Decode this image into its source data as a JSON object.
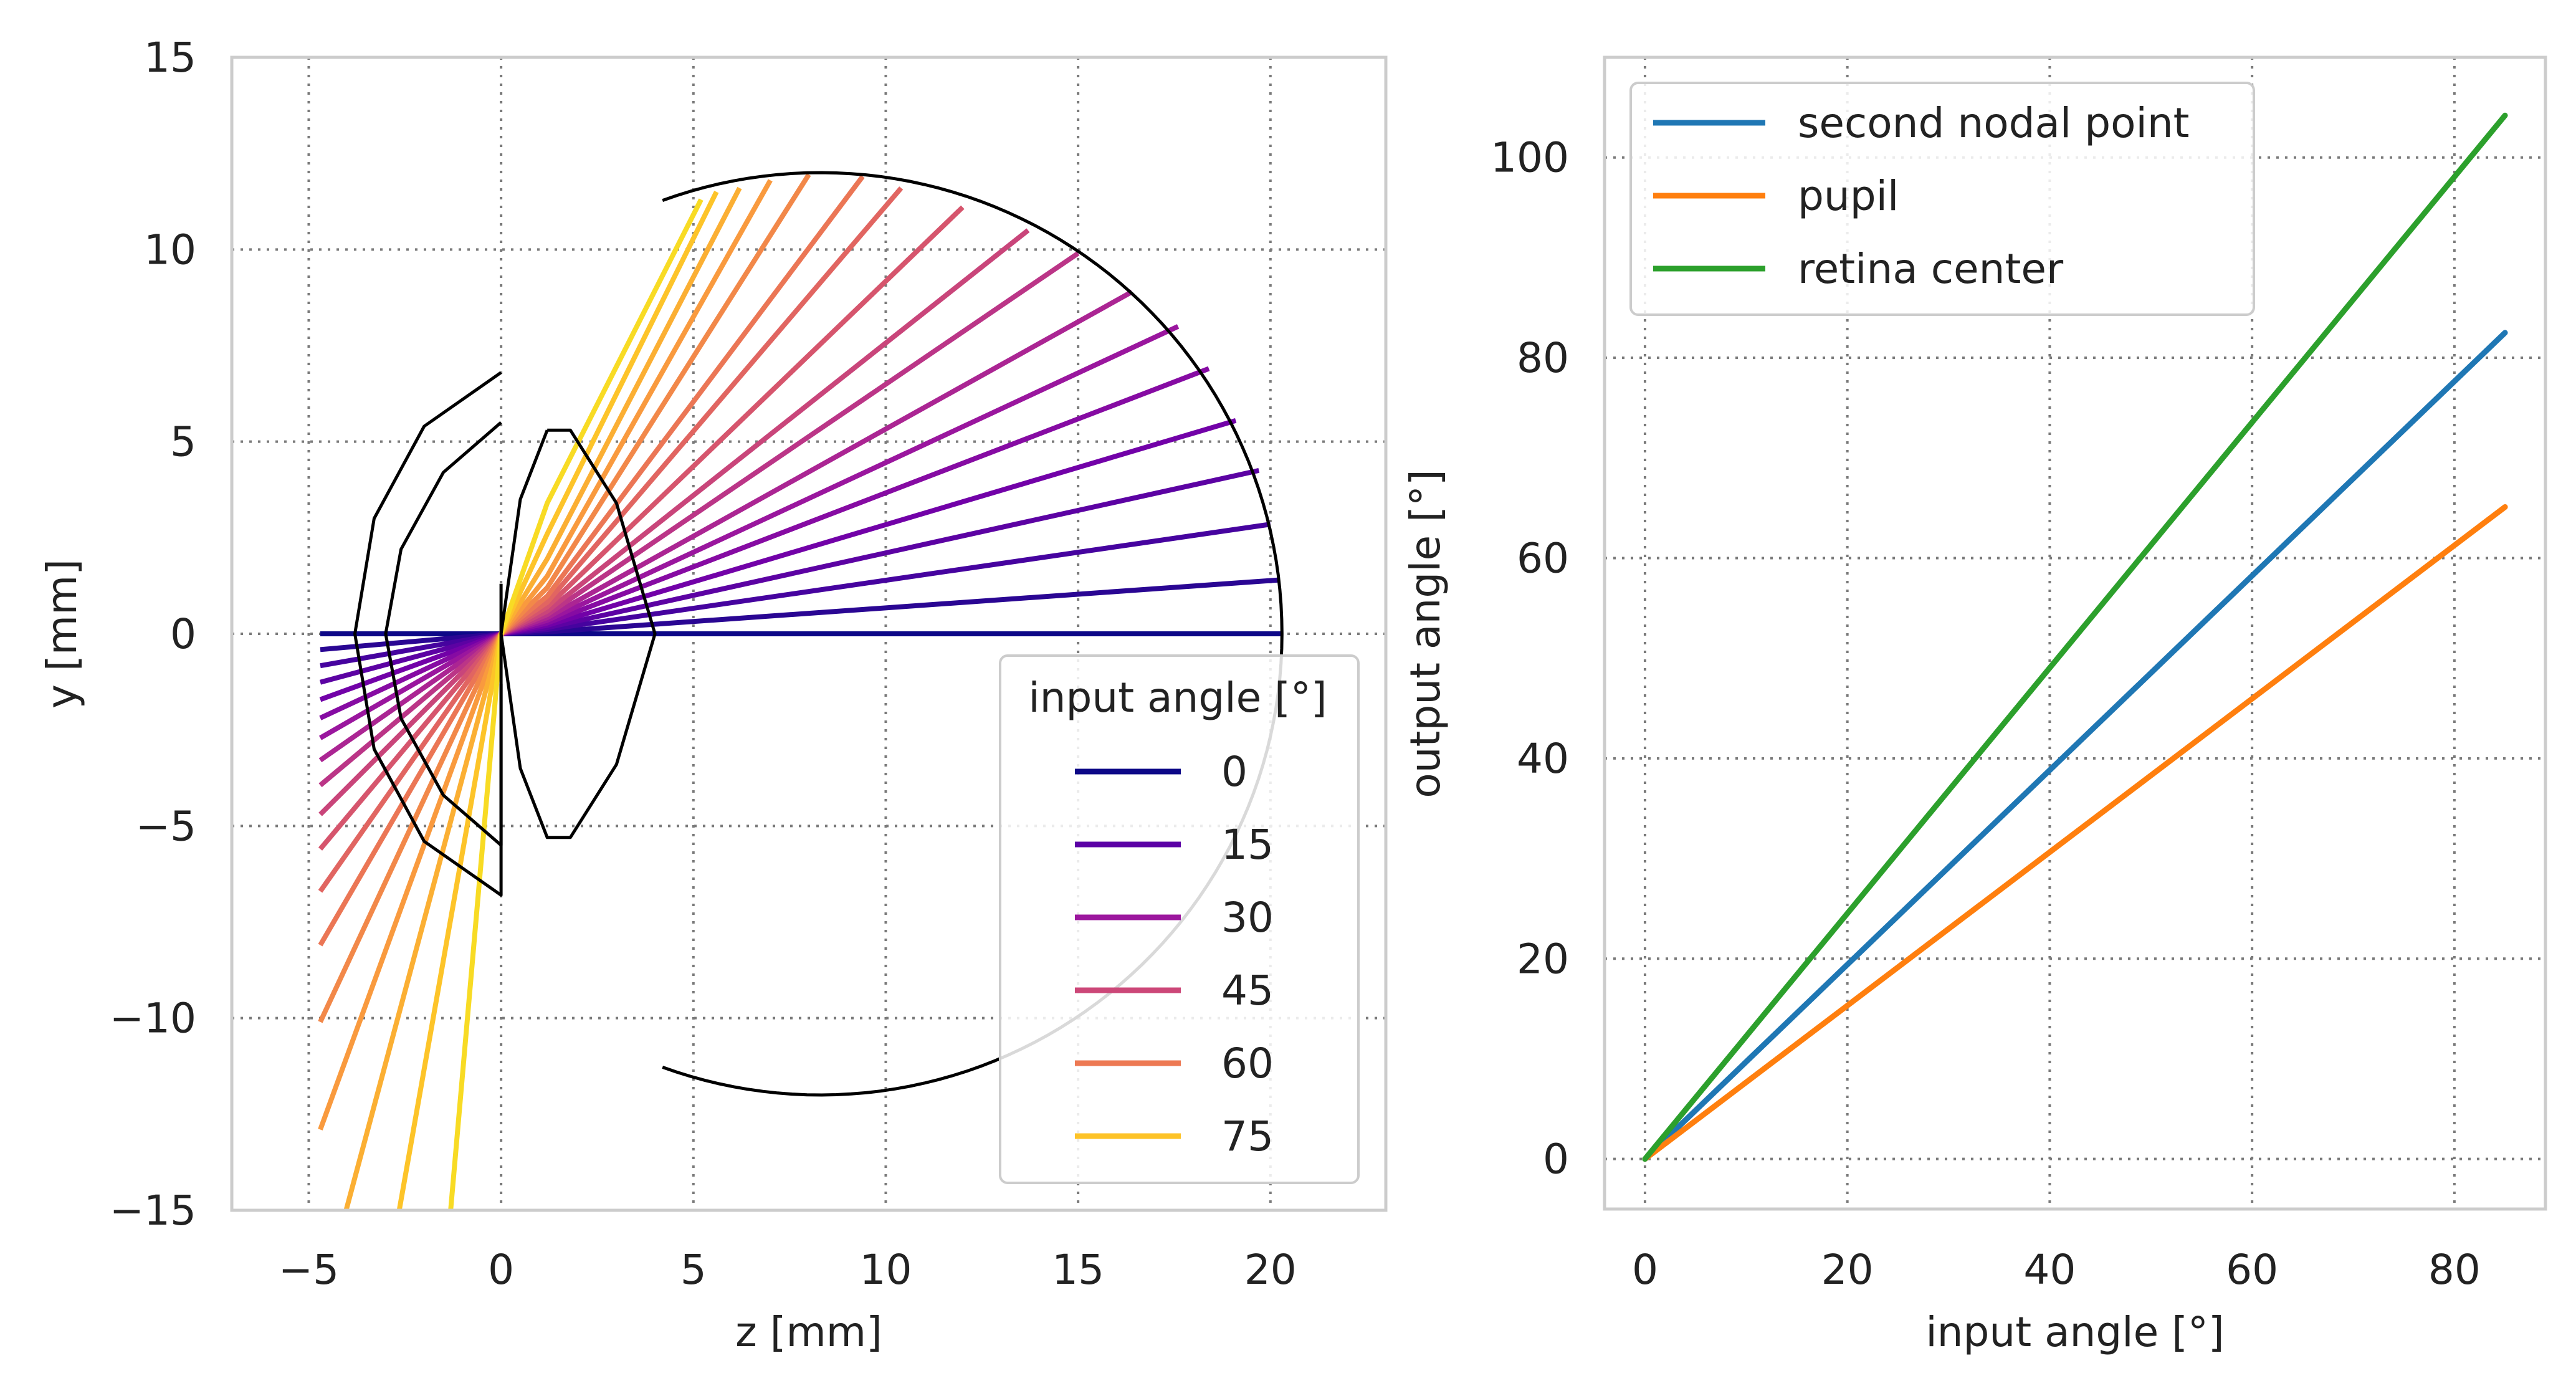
{
  "chart_data": [
    {
      "type": "line",
      "xlabel": "z [mm]",
      "ylabel": "y [mm]",
      "xlim": [
        -7,
        23
      ],
      "ylim": [
        -15,
        15
      ],
      "x_ticks": [
        "−5",
        "0",
        "5",
        "10",
        "15",
        "20"
      ],
      "y_ticks": [
        "−15",
        "−10",
        "−5",
        "0",
        "5",
        "10",
        "15"
      ],
      "grid": true,
      "legend": {
        "title": "input angle [°]",
        "placement": "lower-right",
        "entries": [
          {
            "label": "0",
            "color": "#0d0887"
          },
          {
            "label": "15",
            "color": "#5c01a6"
          },
          {
            "label": "30",
            "color": "#9c179e"
          },
          {
            "label": "45",
            "color": "#cc4778"
          },
          {
            "label": "60",
            "color": "#ed7953"
          },
          {
            "label": "75",
            "color": "#fdc328"
          }
        ]
      },
      "ray_input_angles_deg": [
        0,
        5,
        10,
        15,
        20,
        25,
        30,
        35,
        40,
        45,
        50,
        55,
        60,
        65,
        70,
        75,
        80,
        85
      ],
      "rays": [
        {
          "angle": 0,
          "points": [
            [
              -4.7,
              0.0
            ],
            [
              0.0,
              0.0
            ],
            [
              4.0,
              0.0
            ],
            [
              20.3,
              0.0
            ]
          ]
        },
        {
          "angle": 5,
          "points": [
            [
              -4.7,
              -0.41
            ],
            [
              0.0,
              0.0
            ],
            [
              1.2,
              0.05
            ],
            [
              20.2,
              1.4
            ]
          ]
        },
        {
          "angle": 10,
          "points": [
            [
              -4.7,
              -0.83
            ],
            [
              0.0,
              0.0
            ],
            [
              1.2,
              0.11
            ],
            [
              20.0,
              2.85
            ]
          ]
        },
        {
          "angle": 15,
          "points": [
            [
              -4.7,
              -1.26
            ],
            [
              0.0,
              0.0
            ],
            [
              1.2,
              0.16
            ],
            [
              19.7,
              4.25
            ]
          ]
        },
        {
          "angle": 20,
          "points": [
            [
              -4.7,
              -1.71
            ],
            [
              0.0,
              0.0
            ],
            [
              1.2,
              0.22
            ],
            [
              19.1,
              5.55
            ]
          ]
        },
        {
          "angle": 25,
          "points": [
            [
              -4.7,
              -2.19
            ],
            [
              0.0,
              0.0
            ],
            [
              1.2,
              0.28
            ],
            [
              18.4,
              6.9
            ]
          ]
        },
        {
          "angle": 30,
          "points": [
            [
              -4.7,
              -2.71
            ],
            [
              0.0,
              0.0
            ],
            [
              1.2,
              0.35
            ],
            [
              17.6,
              8.0
            ]
          ]
        },
        {
          "angle": 35,
          "points": [
            [
              -4.7,
              -3.29
            ],
            [
              0.0,
              0.0
            ],
            [
              1.2,
              0.42
            ],
            [
              16.4,
              8.9
            ]
          ]
        },
        {
          "angle": 40,
          "points": [
            [
              -4.7,
              -3.94
            ],
            [
              0.0,
              0.0
            ],
            [
              1.2,
              0.5
            ],
            [
              15.0,
              9.9
            ]
          ]
        },
        {
          "angle": 45,
          "points": [
            [
              -4.7,
              -4.7
            ],
            [
              0.0,
              0.0
            ],
            [
              1.2,
              0.59
            ],
            [
              13.7,
              10.5
            ]
          ]
        },
        {
          "angle": 50,
          "points": [
            [
              -4.7,
              -5.6
            ],
            [
              0.0,
              0.0
            ],
            [
              1.2,
              0.7
            ],
            [
              12.0,
              11.1
            ]
          ]
        },
        {
          "angle": 55,
          "points": [
            [
              -4.7,
              -6.7
            ],
            [
              0.0,
              0.0
            ],
            [
              1.2,
              0.82
            ],
            [
              10.4,
              11.6
            ]
          ]
        },
        {
          "angle": 60,
          "points": [
            [
              -4.7,
              -8.1
            ],
            [
              0.0,
              0.0
            ],
            [
              1.2,
              0.98
            ],
            [
              9.4,
              11.9
            ]
          ]
        },
        {
          "angle": 65,
          "points": [
            [
              -4.7,
              -10.1
            ],
            [
              0.0,
              0.0
            ],
            [
              1.2,
              1.2
            ],
            [
              8.0,
              11.95
            ]
          ]
        },
        {
          "angle": 70,
          "points": [
            [
              -4.7,
              -12.9
            ],
            [
              0.0,
              0.0
            ],
            [
              1.2,
              1.5
            ],
            [
              7.0,
              11.8
            ]
          ]
        },
        {
          "angle": 75,
          "points": [
            [
              -4.7,
              -17.5
            ],
            [
              0.0,
              0.0
            ],
            [
              1.2,
              1.95
            ],
            [
              6.2,
              11.6
            ]
          ]
        },
        {
          "angle": 80,
          "points": [
            [
              -3.3,
              -18.7
            ],
            [
              0.0,
              0.0
            ],
            [
              1.2,
              2.6
            ],
            [
              5.6,
              11.5
            ]
          ]
        },
        {
          "angle": 85,
          "points": [
            [
              -1.6,
              -18.3
            ],
            [
              0.0,
              0.0
            ],
            [
              1.2,
              3.4
            ],
            [
              5.2,
              11.3
            ]
          ]
        }
      ],
      "eye_outline": [
        {
          "name": "cornea",
          "points": [
            [
              0,
              6.8
            ],
            [
              -2.0,
              5.4
            ],
            [
              -3.3,
              3.0
            ],
            [
              -3.8,
              0
            ],
            [
              -3.3,
              -3.0
            ],
            [
              -2.0,
              -5.4
            ],
            [
              0,
              -6.8
            ],
            [
              0,
              -1.3
            ]
          ]
        },
        {
          "name": "cornea-inner",
          "points": [
            [
              0,
              5.5
            ],
            [
              -1.5,
              4.2
            ],
            [
              -2.6,
              2.2
            ],
            [
              -3.0,
              0
            ],
            [
              -2.6,
              -2.2
            ],
            [
              -1.5,
              -4.2
            ],
            [
              0,
              -5.5
            ],
            [
              0,
              1.3
            ]
          ]
        },
        {
          "name": "lens",
          "points": [
            [
              1.2,
              5.3
            ],
            [
              1.8,
              5.3
            ],
            [
              3.0,
              3.4
            ],
            [
              4.0,
              0
            ],
            [
              3.0,
              -3.4
            ],
            [
              1.8,
              -5.3
            ],
            [
              1.2,
              -5.3
            ],
            [
              0.5,
              -3.5
            ],
            [
              0.0,
              0
            ],
            [
              0.5,
              3.5
            ],
            [
              1.2,
              5.3
            ]
          ]
        },
        {
          "name": "retina",
          "arc": {
            "center": [
              8.3,
              0
            ],
            "radius": 12,
            "from_deg": 110,
            "to_deg": -110,
            "via": "right"
          }
        }
      ]
    },
    {
      "type": "line",
      "xlabel": "input angle [°]",
      "ylabel": "output angle [°]",
      "xlim": [
        -4,
        89
      ],
      "ylim": [
        -5,
        110
      ],
      "x_ticks": [
        "0",
        "20",
        "40",
        "60",
        "80"
      ],
      "y_ticks": [
        "0",
        "20",
        "40",
        "60",
        "80",
        "100"
      ],
      "grid": true,
      "legend": {
        "placement": "top-left"
      },
      "x": [
        0,
        85
      ],
      "series": [
        {
          "name": "second nodal point",
          "color": "#1f77b4",
          "values": [
            0,
            82.5
          ]
        },
        {
          "name": "pupil",
          "color": "#ff7f0e",
          "values": [
            0,
            65.1
          ]
        },
        {
          "name": "retina center",
          "color": "#2ca02c",
          "values": [
            0,
            104.2
          ]
        }
      ]
    }
  ]
}
